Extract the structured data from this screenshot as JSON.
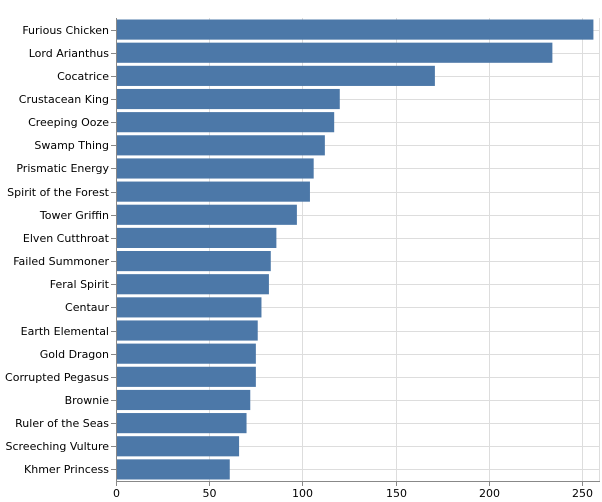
{
  "chart_data": {
    "type": "bar",
    "orientation": "horizontal",
    "categories": [
      "Furious Chicken",
      "Lord Arianthus",
      "Cocatrice",
      "Crustacean King",
      "Creeping Ooze",
      "Swamp Thing",
      "Prismatic Energy",
      "Spirit of the Forest",
      "Tower Griffin",
      "Elven Cutthroat",
      "Failed Summoner",
      "Feral Spirit",
      "Centaur",
      "Earth Elemental",
      "Gold Dragon",
      "Corrupted Pegasus",
      "Brownie",
      "Ruler of the Seas",
      "Screeching Vulture",
      "Khmer Princess"
    ],
    "values": [
      256,
      234,
      171,
      120,
      117,
      112,
      106,
      104,
      97,
      86,
      83,
      82,
      78,
      76,
      75,
      75,
      72,
      70,
      66,
      61
    ],
    "title": "",
    "xlabel": "",
    "ylabel": "",
    "xlim": [
      0,
      259
    ],
    "xticks": [
      0,
      50,
      100,
      150,
      200,
      250
    ],
    "grid": true,
    "bar_color": "#4c78a8",
    "grid_color": "#dddddd",
    "axis_color": "#888888"
  }
}
